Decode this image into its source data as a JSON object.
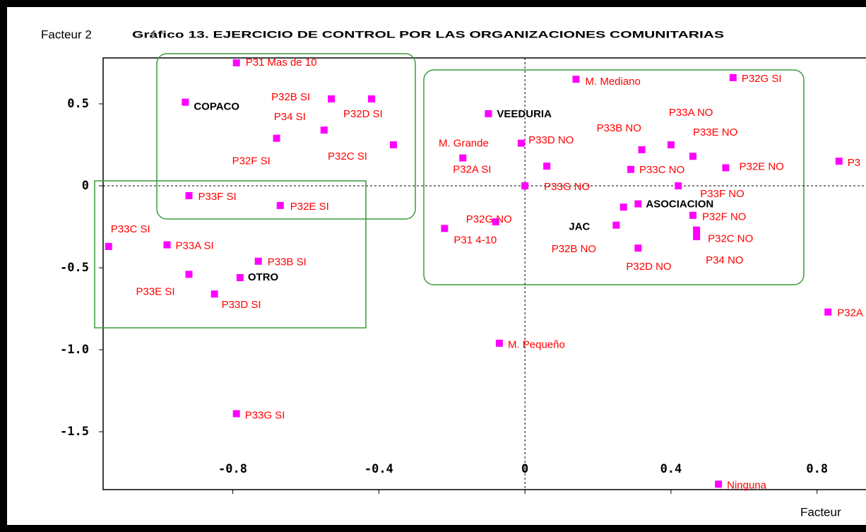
{
  "chart_data": {
    "type": "scatter",
    "title": "Gráfico 13. EJERCICIO DE CONTROL POR LAS ORGANIZACIONES COMUNITARIAS",
    "y_label": "Facteur 2",
    "x_label": "Facteur",
    "xlim": [
      -1.155,
      0.934
    ],
    "ylim": [
      -1.853,
      0.78
    ],
    "xticks": [
      -0.8,
      -0.4,
      0,
      0.4,
      0.8
    ],
    "yticks": [
      0.5,
      0,
      -0.5,
      {
        "value": -1.0,
        "label": "-1.0"
      },
      -1.5
    ],
    "marker_color": "#ff00ff",
    "label_color": "#ff0000",
    "points": [
      {
        "label": "P31 Mas de 10",
        "x": -0.79,
        "y": 0.75
      },
      {
        "label": "COPACO",
        "x": -0.93,
        "y": 0.51,
        "bold": true
      },
      {
        "label": "P32B SI",
        "x": -0.53,
        "y": 0.53
      },
      {
        "label": "P32D SI",
        "x": -0.42,
        "y": 0.53
      },
      {
        "label": "P34 SI",
        "x": -0.55,
        "y": 0.34
      },
      {
        "label": "P32F SI",
        "x": -0.68,
        "y": 0.29
      },
      {
        "label": "P32C SI",
        "x": -0.36,
        "y": 0.25
      },
      {
        "label": "P33F SI",
        "x": -0.92,
        "y": -0.06
      },
      {
        "label": "P32E SI",
        "x": -0.67,
        "y": -0.12
      },
      {
        "label": "P33C SI",
        "x": -1.14,
        "y": -0.37
      },
      {
        "label": "P33A SI",
        "x": -0.98,
        "y": -0.36
      },
      {
        "label": "P33B SI",
        "x": -0.73,
        "y": -0.46
      },
      {
        "label": "OTRO",
        "x": -0.78,
        "y": -0.56,
        "bold": true
      },
      {
        "label": "P33E SI",
        "x": -0.92,
        "y": -0.54
      },
      {
        "label": "P33D SI",
        "x": -0.85,
        "y": -0.66
      },
      {
        "label": "P33G SI",
        "x": -0.79,
        "y": -1.39
      },
      {
        "label": "M. Mediano",
        "x": 0.14,
        "y": 0.65
      },
      {
        "label": "P32G SI",
        "x": 0.57,
        "y": 0.66
      },
      {
        "label": "VEEDURIA",
        "x": -0.1,
        "y": 0.44,
        "bold": true
      },
      {
        "label": "P32A SI",
        "x": -0.17,
        "y": 0.17
      },
      {
        "label": "M. Grande",
        "x": -0.01,
        "y": 0.26
      },
      {
        "label": "P33D NO",
        "x": 0.06,
        "y": 0.12
      },
      {
        "label": "P33B NO",
        "x": 0.32,
        "y": 0.22
      },
      {
        "label": "P33A NO",
        "x": 0.4,
        "y": 0.25
      },
      {
        "label": "P33E NO",
        "x": 0.46,
        "y": 0.18
      },
      {
        "label": "P33C NO",
        "x": 0.29,
        "y": 0.1
      },
      {
        "label": "P32E NO",
        "x": 0.55,
        "y": 0.11
      },
      {
        "label": "P33G NO",
        "x": 0,
        "y": 0
      },
      {
        "label": "P33F NO",
        "x": 0.42,
        "y": 0.0
      },
      {
        "label": "P3",
        "x": 0.86,
        "y": 0.15
      },
      {
        "label": "ASOCIACION",
        "x": 0.31,
        "y": -0.11,
        "bold": true
      },
      {
        "label": "JAC",
        "x": 0.25,
        "y": -0.24,
        "bold": true
      },
      {
        "label": "P32B NO",
        "x": 0.27,
        "y": -0.13
      },
      {
        "label": "P32F NO",
        "x": 0.46,
        "y": -0.18
      },
      {
        "label": "P32C NO",
        "x": 0.47,
        "y": -0.27
      },
      {
        "label": "P34 NO",
        "x": 0.47,
        "y": -0.31
      },
      {
        "label": "P32G NO",
        "x": -0.08,
        "y": -0.22
      },
      {
        "label": "P31 4-10",
        "x": -0.22,
        "y": -0.26
      },
      {
        "label": "P32D NO",
        "x": 0.31,
        "y": -0.38
      },
      {
        "label": "M. Pequeño",
        "x": -0.07,
        "y": -0.96
      },
      {
        "label": "P32A",
        "x": 0.83,
        "y": -0.77
      },
      {
        "label": "Ninguna",
        "x": 0.53,
        "y": -1.82
      }
    ]
  }
}
